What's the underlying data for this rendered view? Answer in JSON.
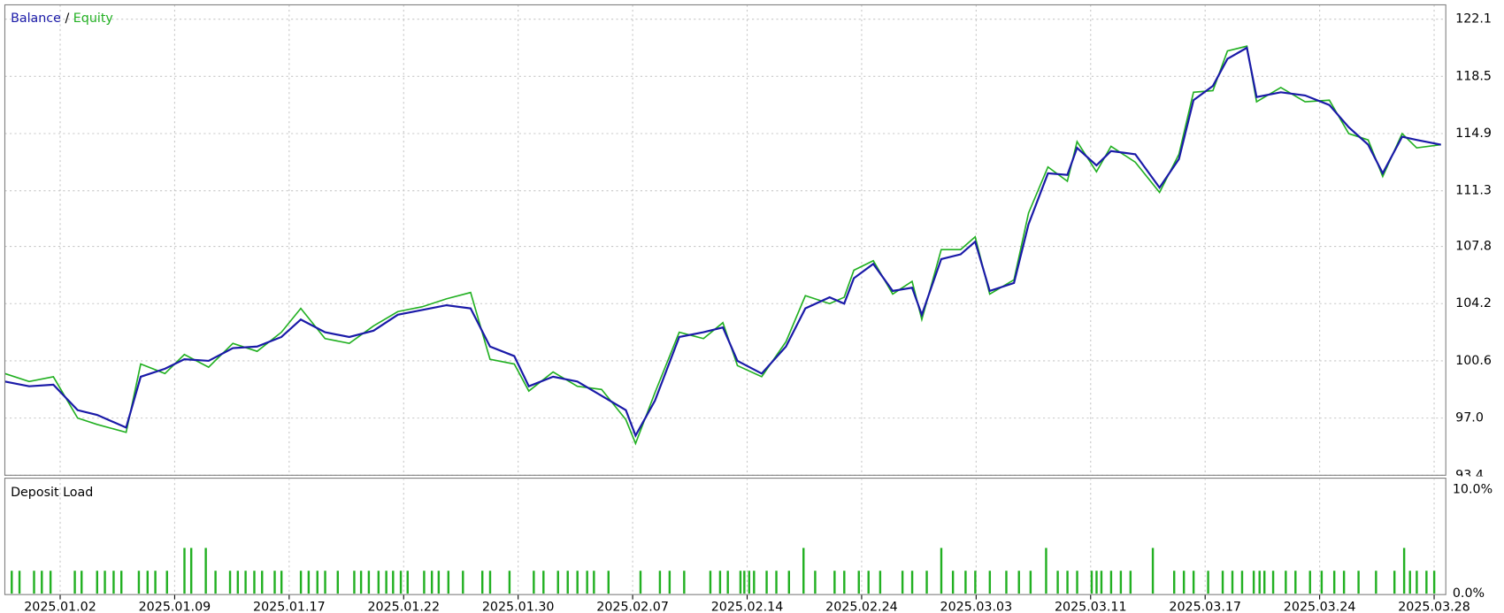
{
  "chart_data": [
    {
      "type": "line",
      "legend_separator": "/",
      "xlim": [
        5,
        1490
      ],
      "xticks": [
        {
          "value": 62,
          "label": "2025.01.02"
        },
        {
          "value": 180,
          "label": "2025.01.09"
        },
        {
          "value": 298,
          "label": "2025.01.17"
        },
        {
          "value": 416,
          "label": "2025.01.22"
        },
        {
          "value": 534,
          "label": "2025.01.30"
        },
        {
          "value": 652,
          "label": "2025.02.07"
        },
        {
          "value": 770,
          "label": "2025.02.14"
        },
        {
          "value": 888,
          "label": "2025.02.24"
        },
        {
          "value": 1006,
          "label": "2025.03.03"
        },
        {
          "value": 1124,
          "label": "2025.03.11"
        },
        {
          "value": 1242,
          "label": "2025.03.17"
        },
        {
          "value": 1360,
          "label": "2025.03.24"
        },
        {
          "value": 1478,
          "label": "2025.03.28"
        }
      ],
      "ylim": [
        93.4,
        123.0
      ],
      "yticks": [
        93.4,
        {
          "value": 97,
          "label": "97.0"
        },
        100.6,
        104.2,
        107.8,
        111.3,
        114.9,
        118.5,
        122.1
      ],
      "grid": true,
      "x": [
        5,
        30,
        55,
        80,
        100,
        130,
        145,
        170,
        190,
        215,
        240,
        265,
        290,
        310,
        335,
        360,
        385,
        410,
        435,
        460,
        485,
        505,
        530,
        545,
        570,
        595,
        620,
        645,
        655,
        675,
        700,
        725,
        745,
        760,
        785,
        810,
        830,
        855,
        870,
        880,
        900,
        920,
        940,
        950,
        970,
        990,
        1005,
        1020,
        1045,
        1060,
        1080,
        1100,
        1110,
        1130,
        1145,
        1170,
        1195,
        1215,
        1230,
        1250,
        1265,
        1285,
        1295,
        1320,
        1345,
        1370,
        1390,
        1410,
        1425,
        1445,
        1460,
        1485
      ],
      "series": [
        {
          "name": "Equity",
          "color": "#22b022",
          "values": [
            99.8,
            99.3,
            99.6,
            97.0,
            96.6,
            96.1,
            100.4,
            99.8,
            101.0,
            100.2,
            101.7,
            101.2,
            102.4,
            103.9,
            102.0,
            101.7,
            102.8,
            103.7,
            104.0,
            104.5,
            104.9,
            100.7,
            100.4,
            98.7,
            99.9,
            99.0,
            98.8,
            96.9,
            95.4,
            98.6,
            102.4,
            102.0,
            103.0,
            100.3,
            99.6,
            101.8,
            104.7,
            104.2,
            104.6,
            106.3,
            106.9,
            104.8,
            105.6,
            103.2,
            107.6,
            107.6,
            108.4,
            104.8,
            105.7,
            109.9,
            112.8,
            111.9,
            114.4,
            112.5,
            114.1,
            113.1,
            111.2,
            113.6,
            117.5,
            117.6,
            120.1,
            120.4,
            116.9,
            117.8,
            116.9,
            117.0,
            114.9,
            114.5,
            112.2,
            114.9,
            114.0,
            114.2
          ]
        },
        {
          "name": "Balance",
          "color": "#1a1aa8",
          "values": [
            99.3,
            99.0,
            99.1,
            97.5,
            97.2,
            96.4,
            99.6,
            100.1,
            100.7,
            100.6,
            101.4,
            101.5,
            102.1,
            103.2,
            102.4,
            102.1,
            102.5,
            103.5,
            103.8,
            104.1,
            103.9,
            101.5,
            100.9,
            99.0,
            99.6,
            99.3,
            98.4,
            97.5,
            95.9,
            98.1,
            102.1,
            102.4,
            102.7,
            100.6,
            99.8,
            101.5,
            103.9,
            104.6,
            104.2,
            105.8,
            106.7,
            105.0,
            105.2,
            103.5,
            107.0,
            107.3,
            108.1,
            105.0,
            105.5,
            109.2,
            112.4,
            112.3,
            114.0,
            112.9,
            113.8,
            113.6,
            111.5,
            113.3,
            117.0,
            117.9,
            119.6,
            120.3,
            117.2,
            117.5,
            117.3,
            116.7,
            115.3,
            114.2,
            112.4,
            114.7,
            114.5,
            114.2
          ]
        }
      ]
    },
    {
      "type": "bar",
      "title": "Deposit Load",
      "color": "#22b022",
      "ylim": [
        0,
        10
      ],
      "yticks": [
        {
          "value": 0,
          "label": "0.0%"
        },
        {
          "value": 10,
          "label": "10.0%"
        }
      ],
      "x": [
        12,
        20,
        35,
        43,
        52,
        77,
        84,
        100,
        108,
        117,
        125,
        143,
        152,
        160,
        172,
        190,
        197,
        212,
        222,
        237,
        245,
        253,
        262,
        270,
        283,
        290,
        310,
        318,
        327,
        335,
        348,
        365,
        372,
        380,
        390,
        398,
        405,
        413,
        420,
        437,
        445,
        452,
        462,
        477,
        497,
        505,
        525,
        550,
        560,
        575,
        585,
        595,
        605,
        612,
        627,
        660,
        680,
        690,
        705,
        732,
        742,
        750,
        763,
        767,
        772,
        777,
        790,
        800,
        813,
        828,
        840,
        860,
        870,
        885,
        895,
        907,
        930,
        940,
        955,
        970,
        982,
        995,
        1005,
        1020,
        1037,
        1050,
        1062,
        1078,
        1090,
        1100,
        1110,
        1125,
        1130,
        1135,
        1145,
        1155,
        1165,
        1188,
        1210,
        1220,
        1230,
        1245,
        1260,
        1270,
        1280,
        1292,
        1298,
        1303,
        1312,
        1325,
        1335,
        1350,
        1362,
        1375,
        1385,
        1400,
        1418,
        1437,
        1447,
        1453,
        1460,
        1470,
        1478
      ],
      "values": [
        2.2,
        2.2,
        2.2,
        2.2,
        2.2,
        2.2,
        2.2,
        2.2,
        2.2,
        2.2,
        2.2,
        2.2,
        2.2,
        2.2,
        2.2,
        4.4,
        4.4,
        4.4,
        2.2,
        2.2,
        2.2,
        2.2,
        2.2,
        2.2,
        2.2,
        2.2,
        2.2,
        2.2,
        2.2,
        2.2,
        2.2,
        2.2,
        2.2,
        2.2,
        2.2,
        2.2,
        2.2,
        2.2,
        2.2,
        2.2,
        2.2,
        2.2,
        2.2,
        2.2,
        2.2,
        2.2,
        2.2,
        2.2,
        2.2,
        2.2,
        2.2,
        2.2,
        2.2,
        2.2,
        2.2,
        2.2,
        2.2,
        2.2,
        2.2,
        2.2,
        2.2,
        2.2,
        2.2,
        2.2,
        2.2,
        2.2,
        2.2,
        2.2,
        2.2,
        4.4,
        2.2,
        2.2,
        2.2,
        2.2,
        2.2,
        2.2,
        2.2,
        2.2,
        2.2,
        4.4,
        2.2,
        2.2,
        2.2,
        2.2,
        2.2,
        2.2,
        2.2,
        4.4,
        2.2,
        2.2,
        2.2,
        2.2,
        2.2,
        2.2,
        2.2,
        2.2,
        2.2,
        4.4,
        2.2,
        2.2,
        2.2,
        2.2,
        2.2,
        2.2,
        2.2,
        2.2,
        2.2,
        2.2,
        2.2,
        2.2,
        2.2,
        2.2,
        2.2,
        2.2,
        2.2,
        2.2,
        2.2,
        2.2,
        4.4,
        2.2,
        2.2,
        2.2,
        2.2
      ]
    }
  ]
}
